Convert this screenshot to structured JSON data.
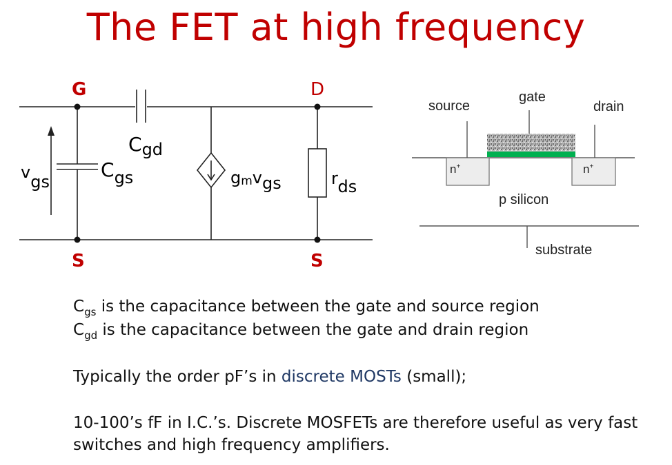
{
  "title": "The FET at high frequency",
  "circuit": {
    "node_g": "G",
    "node_d": "D",
    "node_s_left": "S",
    "node_s_right": "S",
    "cgd_main": "C",
    "cgd_sub": "gd",
    "cgs_main": "C",
    "cgs_sub": "gs",
    "vgs_main": "v",
    "vgs_sub": "gs",
    "gm_main": "g",
    "gm_sub": "m",
    "gm_v": "v",
    "gm_vsub": "gs",
    "rds_main": "r",
    "rds_sub": "ds"
  },
  "device": {
    "source": "source",
    "gate": "gate",
    "drain": "drain",
    "n_left": "n",
    "n_right": "n",
    "plus": "+",
    "p_silicon": "p silicon",
    "substrate": "substrate"
  },
  "text": {
    "line1_c": "C",
    "line1_sub": "gs",
    "line1_rest": " is the capacitance between the gate and source region",
    "line2_c": "C",
    "line2_sub": "gd",
    "line2_rest": " is the capacitance between the gate and drain region",
    "line3_a": "Typically the order pF’s in ",
    "line3_hl": "discrete MOSTs",
    "line3_b": " (small);",
    "line4": "10-100’s fF in I.C.’s.  Discrete MOSFETs are therefore useful as very fast",
    "line5": "switches and high frequency amplifiers."
  },
  "colors": {
    "title": "#c00000",
    "node_labels": "#c00000",
    "gate_oxide": "#00b050",
    "highlight_text": "#1f3864"
  }
}
